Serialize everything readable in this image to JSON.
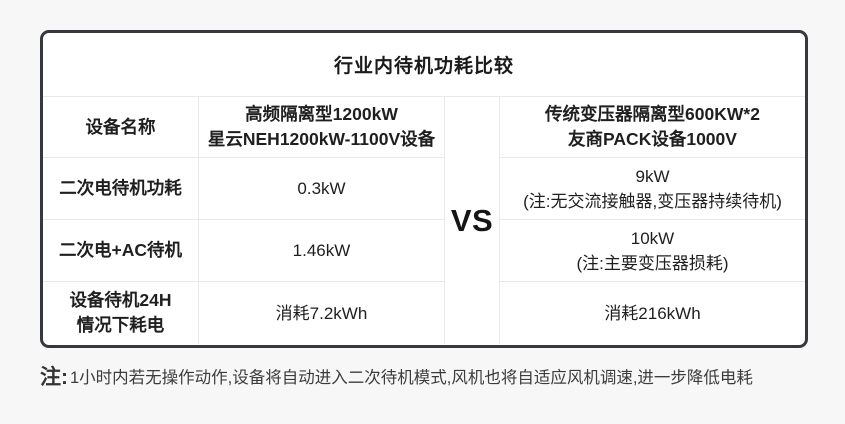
{
  "colors": {
    "page_background": "#f7f7f8",
    "card_background": "#ffffff",
    "card_border": "#35383c",
    "grid_line": "#e9e9e9",
    "text": "#1f1f1f"
  },
  "table": {
    "title": "行业内待机功耗比较",
    "vs_label": "VS",
    "rows": [
      {
        "label_lines": [
          "设备名称"
        ],
        "col_a_lines": [
          "高频隔离型1200kW",
          "星云NEH1200kW-1100V设备"
        ],
        "col_b_lines": [
          "传统变压器隔离型600KW*2",
          "友商PACK设备1000V"
        ]
      },
      {
        "label_lines": [
          "二次电待机功耗"
        ],
        "col_a_lines": [
          "0.3kW"
        ],
        "col_b_lines": [
          "9kW",
          "(注:无交流接触器,变压器持续待机)"
        ]
      },
      {
        "label_lines": [
          "二次电+AC待机"
        ],
        "col_a_lines": [
          "1.46kW"
        ],
        "col_b_lines": [
          "10kW",
          "(注:主要变压器损耗)"
        ]
      },
      {
        "label_lines": [
          "设备待机24H",
          "情况下耗电"
        ],
        "col_a_lines": [
          "消耗7.2kWh"
        ],
        "col_b_lines": [
          "消耗216kWh"
        ]
      }
    ]
  },
  "footnote": {
    "prefix": "注:",
    "text": "1小时内若无操作动作,设备将自动进入二次待机模式,风机也将自适应风机调速,进一步降低电耗"
  },
  "chart_data": {
    "type": "table",
    "title": "行业内待机功耗比较",
    "columns": [
      "设备名称",
      "高频隔离型1200kW 星云NEH1200kW-1100V设备",
      "VS",
      "传统变压器隔离型600KW*2 友商PACK设备1000V"
    ],
    "rows": [
      [
        "二次电待机功耗",
        "0.3kW",
        "",
        "9kW (注:无交流接触器,变压器持续待机)"
      ],
      [
        "二次电+AC待机",
        "1.46kW",
        "",
        "10kW (注:主要变压器损耗)"
      ],
      [
        "设备待机24H情况下耗电",
        "消耗7.2kWh",
        "",
        "消耗216kWh"
      ]
    ],
    "footnote": "注:1小时内若无操作动作,设备将自动进入二次待机模式,风机也将自适应风机调速,进一步降低电耗"
  }
}
